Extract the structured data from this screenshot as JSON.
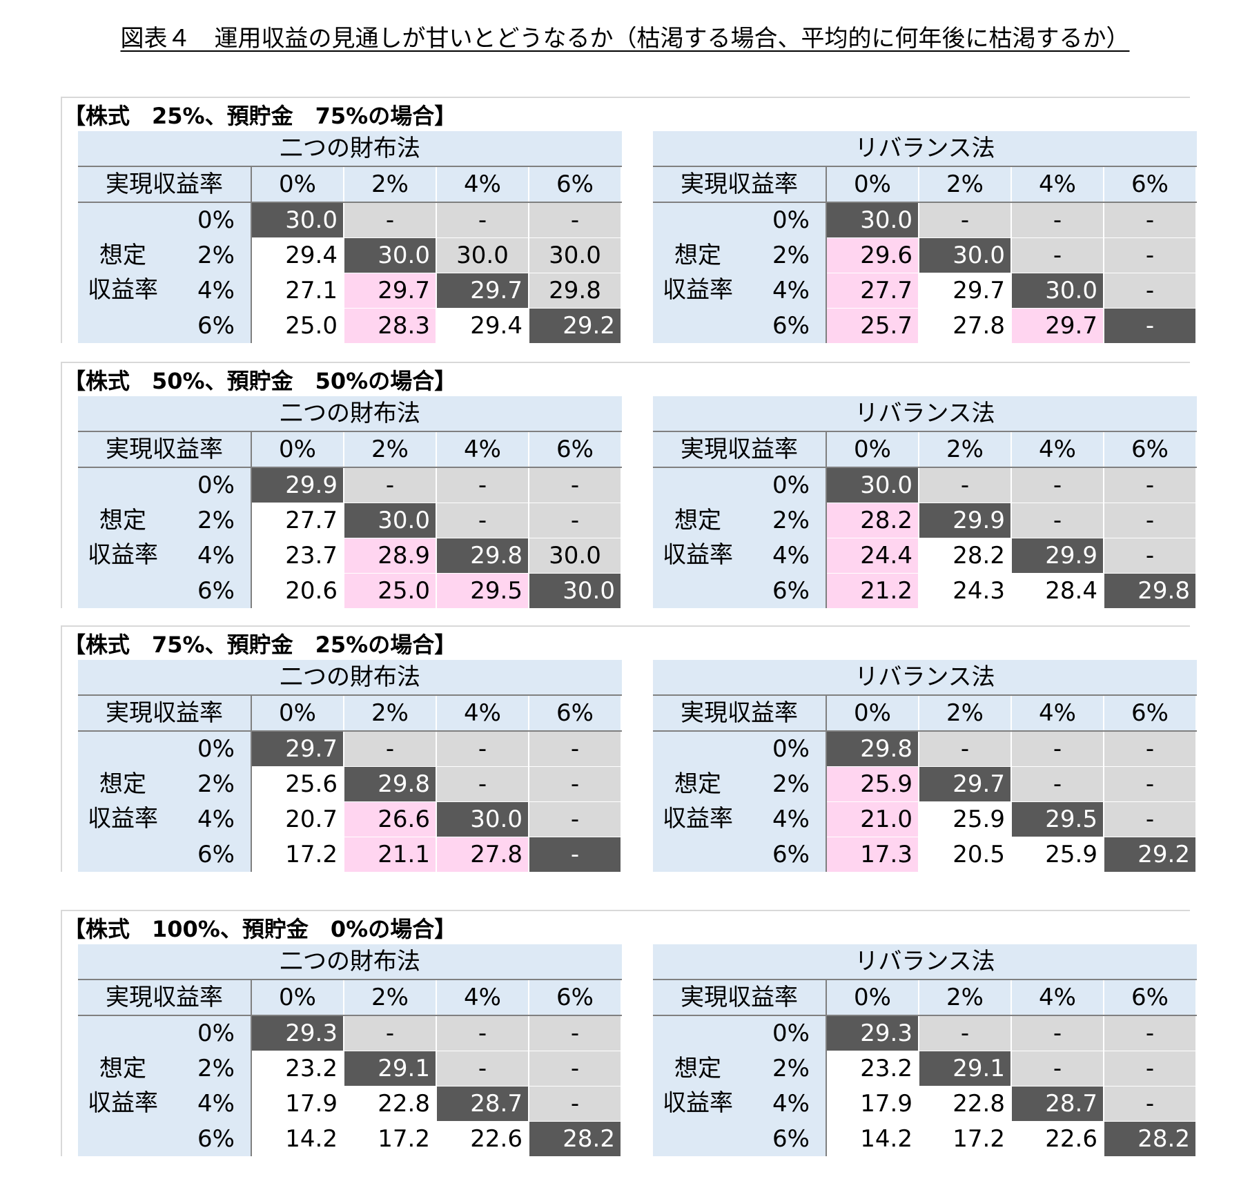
{
  "title": "図表４　運用収益の見通しが甘いとどうなるか（枯渇する場合、平均的に何年後に枯渇するか）",
  "labels": {
    "realized": "実現収益率",
    "assumed_1": "想定",
    "assumed_2": "収益率",
    "cols": [
      "0%",
      "2%",
      "4%",
      "6%"
    ],
    "rows": [
      "0%",
      "2%",
      "4%",
      "6%"
    ]
  },
  "methods": [
    "二つの財布法",
    "リバランス法"
  ],
  "sections": [
    {
      "title": "【株式　25%、預貯金　75%の場合】",
      "tables": [
        {
          "values": [
            [
              "30.0",
              "-",
              "-",
              "-"
            ],
            [
              "29.4",
              "30.0",
              "30.0",
              "30.0"
            ],
            [
              "27.1",
              "29.7",
              "29.7",
              "29.8"
            ],
            [
              "25.0",
              "28.3",
              "29.4",
              "29.2"
            ]
          ],
          "styles": [
            [
              "diag",
              "grey",
              "grey",
              "grey"
            ],
            [
              "white",
              "diag",
              "grey",
              "grey"
            ],
            [
              "white",
              "pink",
              "diag",
              "grey"
            ],
            [
              "white",
              "pink",
              "white",
              "diag"
            ]
          ]
        },
        {
          "values": [
            [
              "30.0",
              "-",
              "-",
              "-"
            ],
            [
              "29.6",
              "30.0",
              "-",
              "-"
            ],
            [
              "27.7",
              "29.7",
              "30.0",
              "-"
            ],
            [
              "25.7",
              "27.8",
              "29.7",
              "-"
            ]
          ],
          "styles": [
            [
              "diag",
              "grey",
              "grey",
              "grey"
            ],
            [
              "pink",
              "diag",
              "grey",
              "grey"
            ],
            [
              "pink",
              "white",
              "diag",
              "grey"
            ],
            [
              "pink",
              "white",
              "pink",
              "diag"
            ]
          ]
        }
      ]
    },
    {
      "title": "【株式　50%、預貯金　50%の場合】",
      "tables": [
        {
          "values": [
            [
              "29.9",
              "-",
              "-",
              "-"
            ],
            [
              "27.7",
              "30.0",
              "-",
              "-"
            ],
            [
              "23.7",
              "28.9",
              "29.8",
              "30.0"
            ],
            [
              "20.6",
              "25.0",
              "29.5",
              "30.0"
            ]
          ],
          "styles": [
            [
              "diag",
              "grey",
              "grey",
              "grey"
            ],
            [
              "white",
              "diag",
              "grey",
              "grey"
            ],
            [
              "white",
              "pink",
              "diag",
              "grey"
            ],
            [
              "white",
              "pink",
              "pink",
              "diag"
            ]
          ]
        },
        {
          "values": [
            [
              "30.0",
              "-",
              "-",
              "-"
            ],
            [
              "28.2",
              "29.9",
              "-",
              "-"
            ],
            [
              "24.4",
              "28.2",
              "29.9",
              "-"
            ],
            [
              "21.2",
              "24.3",
              "28.4",
              "29.8"
            ]
          ],
          "styles": [
            [
              "diag",
              "grey",
              "grey",
              "grey"
            ],
            [
              "pink",
              "diag",
              "grey",
              "grey"
            ],
            [
              "pink",
              "white",
              "diag",
              "grey"
            ],
            [
              "pink",
              "white",
              "white",
              "diag"
            ]
          ]
        }
      ]
    },
    {
      "title": "【株式　75%、預貯金　25%の場合】",
      "tables": [
        {
          "values": [
            [
              "29.7",
              "-",
              "-",
              "-"
            ],
            [
              "25.6",
              "29.8",
              "-",
              "-"
            ],
            [
              "20.7",
              "26.6",
              "30.0",
              "-"
            ],
            [
              "17.2",
              "21.1",
              "27.8",
              "-"
            ]
          ],
          "styles": [
            [
              "diag",
              "grey",
              "grey",
              "grey"
            ],
            [
              "white",
              "diag",
              "grey",
              "grey"
            ],
            [
              "white",
              "pink",
              "diag",
              "grey"
            ],
            [
              "white",
              "pink",
              "pink",
              "diag"
            ]
          ]
        },
        {
          "values": [
            [
              "29.8",
              "-",
              "-",
              "-"
            ],
            [
              "25.9",
              "29.7",
              "-",
              "-"
            ],
            [
              "21.0",
              "25.9",
              "29.5",
              "-"
            ],
            [
              "17.3",
              "20.5",
              "25.9",
              "29.2"
            ]
          ],
          "styles": [
            [
              "diag",
              "grey",
              "grey",
              "grey"
            ],
            [
              "pink",
              "diag",
              "grey",
              "grey"
            ],
            [
              "pink",
              "white",
              "diag",
              "grey"
            ],
            [
              "pink",
              "white",
              "white",
              "diag"
            ]
          ]
        }
      ]
    },
    {
      "title": "【株式　100%、預貯金　0%の場合】",
      "tables": [
        {
          "values": [
            [
              "29.3",
              "-",
              "-",
              "-"
            ],
            [
              "23.2",
              "29.1",
              "-",
              "-"
            ],
            [
              "17.9",
              "22.8",
              "28.7",
              "-"
            ],
            [
              "14.2",
              "17.2",
              "22.6",
              "28.2"
            ]
          ],
          "styles": [
            [
              "diag",
              "grey",
              "grey",
              "grey"
            ],
            [
              "white",
              "diag",
              "grey",
              "grey"
            ],
            [
              "white",
              "white",
              "diag",
              "grey"
            ],
            [
              "white",
              "white",
              "white",
              "diag"
            ]
          ]
        },
        {
          "values": [
            [
              "29.3",
              "-",
              "-",
              "-"
            ],
            [
              "23.2",
              "29.1",
              "-",
              "-"
            ],
            [
              "17.9",
              "22.8",
              "28.7",
              "-"
            ],
            [
              "14.2",
              "17.2",
              "22.6",
              "28.2"
            ]
          ],
          "styles": [
            [
              "diag",
              "grey",
              "grey",
              "grey"
            ],
            [
              "white",
              "diag",
              "grey",
              "grey"
            ],
            [
              "white",
              "white",
              "diag",
              "grey"
            ],
            [
              "white",
              "white",
              "white",
              "diag"
            ]
          ]
        }
      ]
    }
  ]
}
